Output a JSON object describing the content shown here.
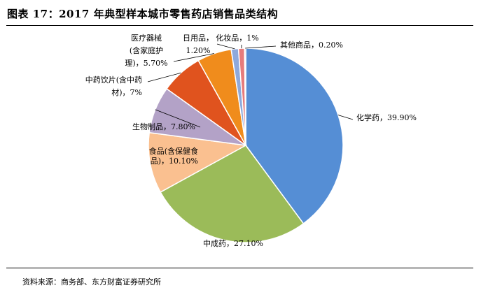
{
  "title": "图表 17：2017 年典型样本城市零售药店销售品类结构",
  "source": "资料来源：商务部、东方财富证券研究所",
  "chart_data": {
    "type": "pie",
    "title": "",
    "start_angle_deg": 90,
    "direction": "clockwise",
    "slices": [
      {
        "label_lines": [
          "化学药，39.90%"
        ],
        "name": "化学药",
        "value": 39.9,
        "color": "#558ED5"
      },
      {
        "label_lines": [
          "中成药，27.10%"
        ],
        "name": "中成药",
        "value": 27.1,
        "color": "#9BBB59"
      },
      {
        "label_lines": [
          "食品(含保健食",
          "品)，10.10%"
        ],
        "name": "食品(含保健食品)",
        "value": 10.1,
        "color": "#FAC090"
      },
      {
        "label_lines": [
          "生物制品，7.80%"
        ],
        "name": "生物制品",
        "value": 7.8,
        "color": "#B3A2C7"
      },
      {
        "label_lines": [
          "中药饮片(含中药",
          "材)，7%"
        ],
        "name": "中药饮片(含中药材)",
        "value": 7.0,
        "color": "#E0531E"
      },
      {
        "label_lines": [
          "医疗器械",
          "(含家庭护",
          "理)，5.70%"
        ],
        "name": "医疗器械(含家庭护理)",
        "value": 5.7,
        "color": "#F08C1C"
      },
      {
        "label_lines": [
          "日用品，",
          "1.20%"
        ],
        "name": "日用品",
        "value": 1.2,
        "color": "#8EA9DB"
      },
      {
        "label_lines": [
          "化妆品，1%"
        ],
        "name": "化妆品",
        "value": 1.0,
        "color": "#E67C7C"
      },
      {
        "label_lines": [
          "其他商品，0.20%"
        ],
        "name": "其他商品",
        "value": 0.2,
        "color": "#C9C9C9"
      }
    ]
  }
}
